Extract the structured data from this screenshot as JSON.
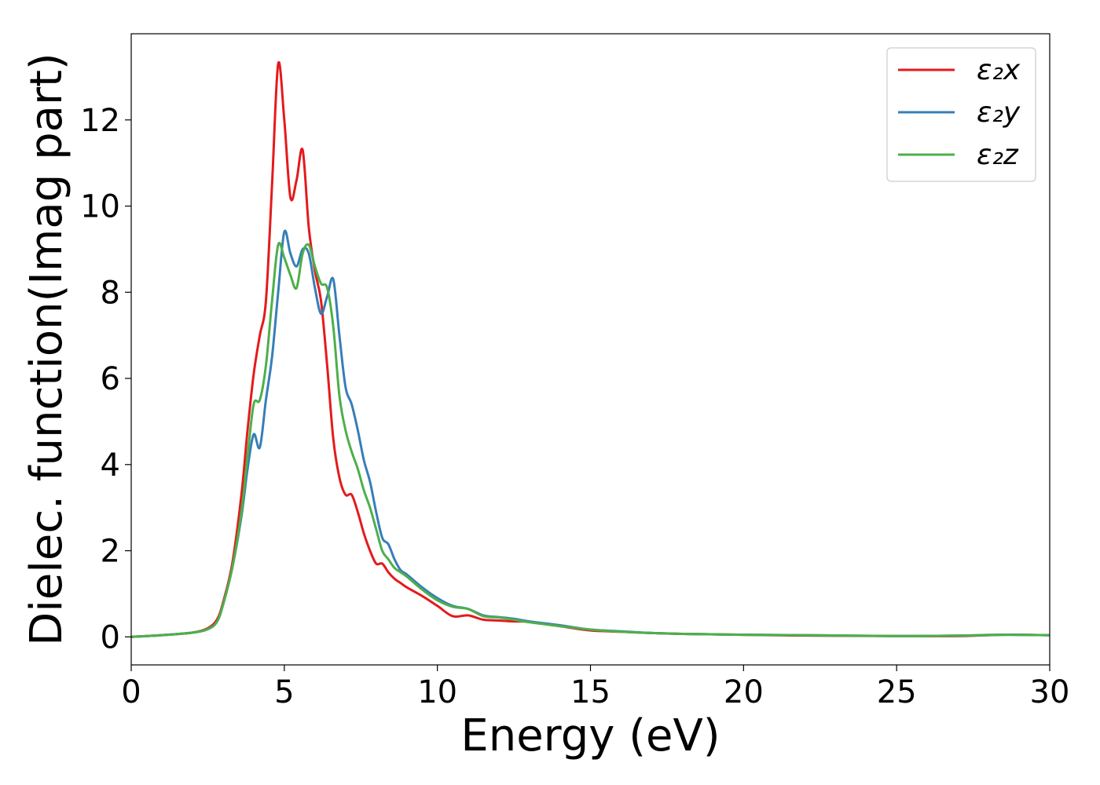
{
  "chart_data": {
    "type": "line",
    "xlabel": "Energy (eV)",
    "ylabel": "Dielec. function(Imag part)",
    "xlim": [
      0,
      30
    ],
    "ylim": [
      -0.65,
      14.0
    ],
    "xticks": [
      0,
      5,
      10,
      15,
      20,
      25,
      30
    ],
    "yticks": [
      0,
      2,
      4,
      6,
      8,
      10,
      12
    ],
    "grid": false,
    "legend_position": "top-right",
    "x": [
      0,
      1,
      2,
      2.5,
      2.8,
      3.0,
      3.3,
      3.6,
      3.8,
      4.0,
      4.2,
      4.4,
      4.6,
      4.8,
      5.0,
      5.2,
      5.4,
      5.6,
      5.8,
      6.0,
      6.2,
      6.4,
      6.6,
      6.8,
      7.0,
      7.2,
      7.4,
      7.6,
      7.8,
      8.0,
      8.2,
      8.4,
      8.6,
      8.8,
      9.0,
      9.5,
      10.0,
      10.5,
      11.0,
      11.5,
      12.0,
      12.5,
      13.0,
      14.0,
      15.0,
      16.0,
      17.0,
      18.0,
      20.0,
      22.0,
      25.0,
      27.0,
      28.5,
      30.0
    ],
    "series": [
      {
        "name": "ε₂x",
        "color": "#e41a1c",
        "values": [
          0.0,
          0.04,
          0.1,
          0.2,
          0.4,
          0.8,
          1.7,
          3.3,
          4.8,
          6.1,
          7.0,
          7.8,
          10.5,
          13.3,
          12.0,
          10.2,
          10.6,
          11.3,
          9.5,
          8.5,
          7.8,
          6.3,
          4.6,
          3.7,
          3.3,
          3.3,
          2.9,
          2.4,
          2.0,
          1.7,
          1.7,
          1.5,
          1.35,
          1.25,
          1.15,
          0.95,
          0.72,
          0.48,
          0.5,
          0.4,
          0.38,
          0.36,
          0.35,
          0.25,
          0.15,
          0.12,
          0.09,
          0.07,
          0.05,
          0.03,
          0.02,
          0.02,
          0.05,
          0.04
        ]
      },
      {
        "name": "ε₂y",
        "color": "#377eb8",
        "values": [
          0.0,
          0.04,
          0.1,
          0.18,
          0.35,
          0.75,
          1.6,
          2.8,
          3.9,
          4.7,
          4.4,
          5.5,
          6.5,
          8.0,
          9.4,
          8.9,
          8.6,
          9.0,
          8.9,
          8.1,
          7.5,
          7.9,
          8.3,
          7.0,
          5.8,
          5.4,
          4.8,
          4.1,
          3.6,
          2.9,
          2.3,
          2.15,
          1.8,
          1.55,
          1.45,
          1.15,
          0.9,
          0.72,
          0.65,
          0.5,
          0.46,
          0.42,
          0.36,
          0.27,
          0.17,
          0.13,
          0.09,
          0.07,
          0.05,
          0.04,
          0.02,
          0.03,
          0.05,
          0.04
        ]
      },
      {
        "name": "ε₂z",
        "color": "#4daf4a",
        "values": [
          0.0,
          0.04,
          0.1,
          0.18,
          0.35,
          0.75,
          1.6,
          2.9,
          4.2,
          5.4,
          5.5,
          6.3,
          7.8,
          9.1,
          8.8,
          8.4,
          8.1,
          8.9,
          9.1,
          8.6,
          8.2,
          8.1,
          7.2,
          5.6,
          4.8,
          4.3,
          3.9,
          3.4,
          3.0,
          2.5,
          2.0,
          1.8,
          1.6,
          1.5,
          1.4,
          1.1,
          0.85,
          0.7,
          0.65,
          0.48,
          0.45,
          0.4,
          0.34,
          0.25,
          0.17,
          0.12,
          0.09,
          0.07,
          0.05,
          0.04,
          0.02,
          0.03,
          0.05,
          0.04
        ]
      }
    ]
  }
}
